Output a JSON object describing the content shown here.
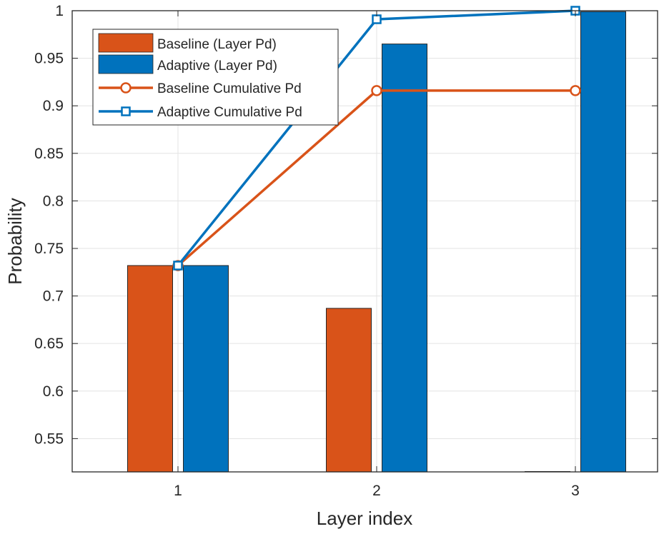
{
  "chart_data": {
    "type": "bar",
    "title": "",
    "xlabel": "Layer index",
    "ylabel": "Probability",
    "categories": [
      "1",
      "2",
      "3"
    ],
    "ylim": [
      0.515,
      1.0
    ],
    "yticks": [
      0.55,
      0.6,
      0.65,
      0.7,
      0.75,
      0.8,
      0.85,
      0.9,
      0.95,
      1
    ],
    "ytick_labels": [
      "0.55",
      "0.6",
      "0.65",
      "0.7",
      "0.75",
      "0.8",
      "0.85",
      "0.9",
      "0.95",
      "1"
    ],
    "grid": true,
    "legend_position": "top-left",
    "bar_series": [
      {
        "name": "Baseline (Layer Pd)",
        "color": "#D95319",
        "values": [
          0.732,
          0.687,
          0.515
        ]
      },
      {
        "name": "Adaptive (Layer Pd)",
        "color": "#0072BD",
        "values": [
          0.732,
          0.965,
          0.999
        ]
      }
    ],
    "line_series": [
      {
        "name": "Baseline Cumulative Pd",
        "color": "#D95319",
        "marker": "circle",
        "values": [
          0.732,
          0.916,
          0.916
        ]
      },
      {
        "name": "Adaptive Cumulative Pd",
        "color": "#0072BD",
        "marker": "square",
        "values": [
          0.732,
          0.991,
          1.0
        ]
      }
    ]
  }
}
